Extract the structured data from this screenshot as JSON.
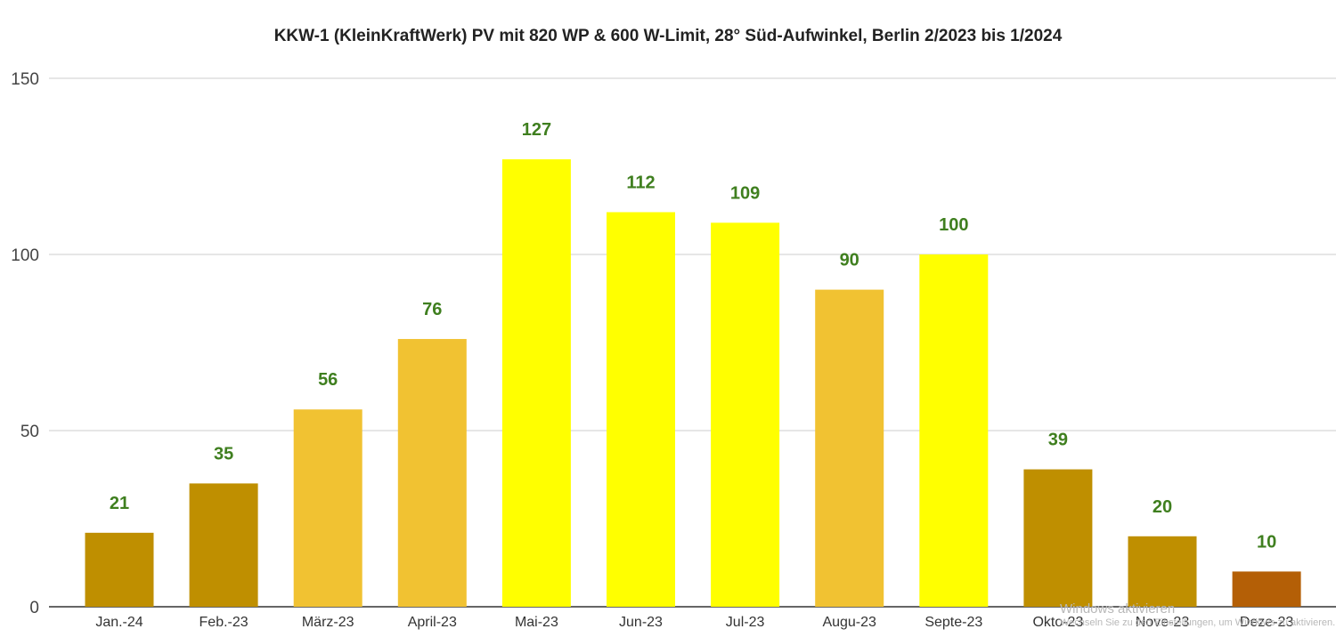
{
  "chart_data": {
    "type": "bar",
    "title": "KKW-1 (KleinKraftWerk) PV mit 820 WP & 600 W-Limit, 28° Süd-Aufwinkel, Berlin 2/2023 bis 1/2024",
    "xlabel": "",
    "ylabel": "",
    "ylim": [
      0,
      150
    ],
    "yticks": [
      0,
      50,
      100,
      150
    ],
    "grid": true,
    "legend": "none",
    "categories": [
      "Jan.-24",
      "Feb.-23",
      "März-23",
      "April-23",
      "Mai-23",
      "Jun-23",
      "Jul-23",
      "Augu-23",
      "Septe-23",
      "Okto-23",
      "Nove-23",
      "Deze-23"
    ],
    "values": [
      21,
      35,
      56,
      76,
      127,
      112,
      109,
      90,
      100,
      39,
      20,
      10
    ],
    "bar_colors": [
      "#bf8f00",
      "#bf8f00",
      "#f1c232",
      "#f1c232",
      "#ffff00",
      "#ffff00",
      "#ffff00",
      "#f1c232",
      "#ffff00",
      "#bf8f00",
      "#bf8f00",
      "#b45f06"
    ],
    "data_label_color": "#3f7f1f"
  },
  "watermark": {
    "line1": "Windows aktivieren",
    "line2": "Wechseln Sie zu den Einstellungen, um Windows zu aktivieren."
  }
}
